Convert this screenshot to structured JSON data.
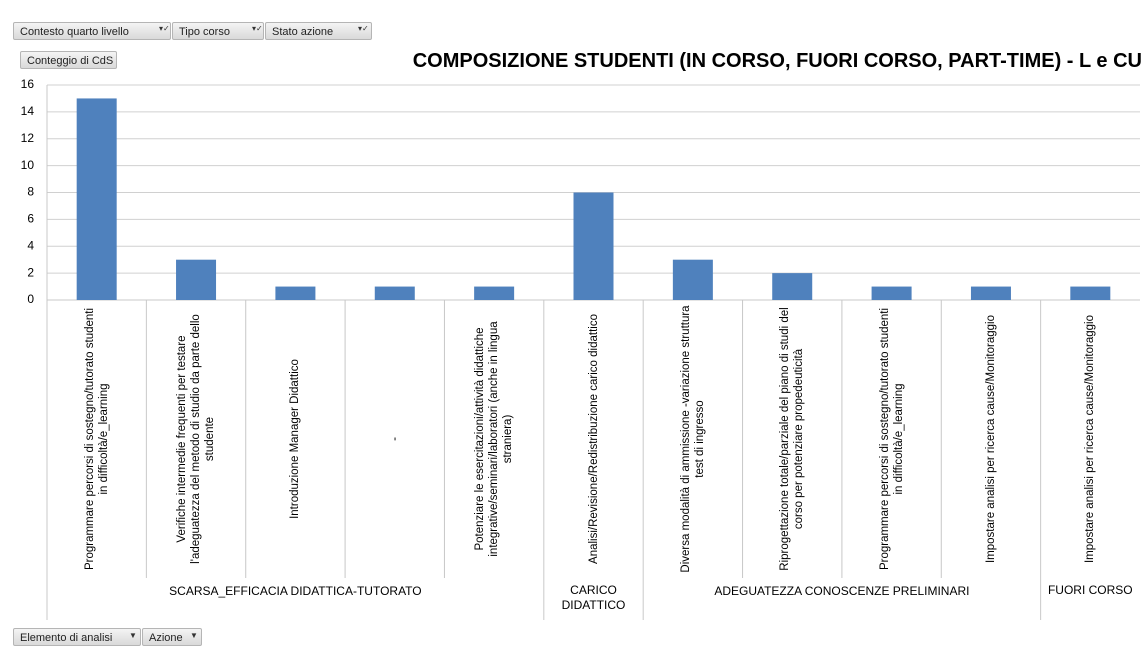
{
  "chart_data": {
    "type": "bar",
    "title": "COMPOSIZIONE STUDENTI (IN CORSO, FUORI CORSO, PART-TIME) - L e CU",
    "filters": [
      "Contesto quarto livello",
      "Tipo corso",
      "Stato azione"
    ],
    "value_field": "Conteggio di CdS",
    "axis_fields": [
      "Elemento di analisi",
      "Azione"
    ],
    "color": "#4f81bd",
    "ylim": [
      0,
      16
    ],
    "yticks": [
      0,
      2,
      4,
      6,
      8,
      10,
      12,
      14,
      16
    ],
    "grid": true,
    "groups": [
      {
        "name": "SCARSA_EFFICACIA DIDATTICA-TUTORATO",
        "categories": [
          "Programmare percorsi di sostegno/tutorato studenti in difficoltà/e_learning",
          "Verifiche intermedie frequenti per testare l'adeguatezza del metodo di studio da parte dello studente",
          "Introduzione Manager Didattico",
          "-",
          "Potenziare le esercitazioni/attività didattiche integrative/seminari/laboratori (anche in lingua straniera)"
        ],
        "values": [
          15,
          3,
          1,
          1,
          1
        ]
      },
      {
        "name": "CARICO DIDATTICO",
        "categories": [
          "Analisi/Revisione/Redistribuzione carico didattico"
        ],
        "values": [
          8
        ]
      },
      {
        "name": "ADEGUATEZZA CONOSCENZE PRELIMINARI",
        "categories": [
          "Diversa modalità di ammissione -variazione struttura test di ingresso",
          "Riprogettazione totale/parziale del piano di studi del corso per potenziare propedeuticità",
          "Programmare percorsi di sostegno/tutorato studenti in difficoltà/e_learning",
          "Impostare analisi per ricerca cause/Monitoraggio"
        ],
        "values": [
          3,
          2,
          1,
          1
        ]
      },
      {
        "name": "FUORI CORSO",
        "categories": [
          "Impostare analisi per ricerca cause/Monitoraggio"
        ],
        "values": [
          1
        ]
      }
    ]
  }
}
